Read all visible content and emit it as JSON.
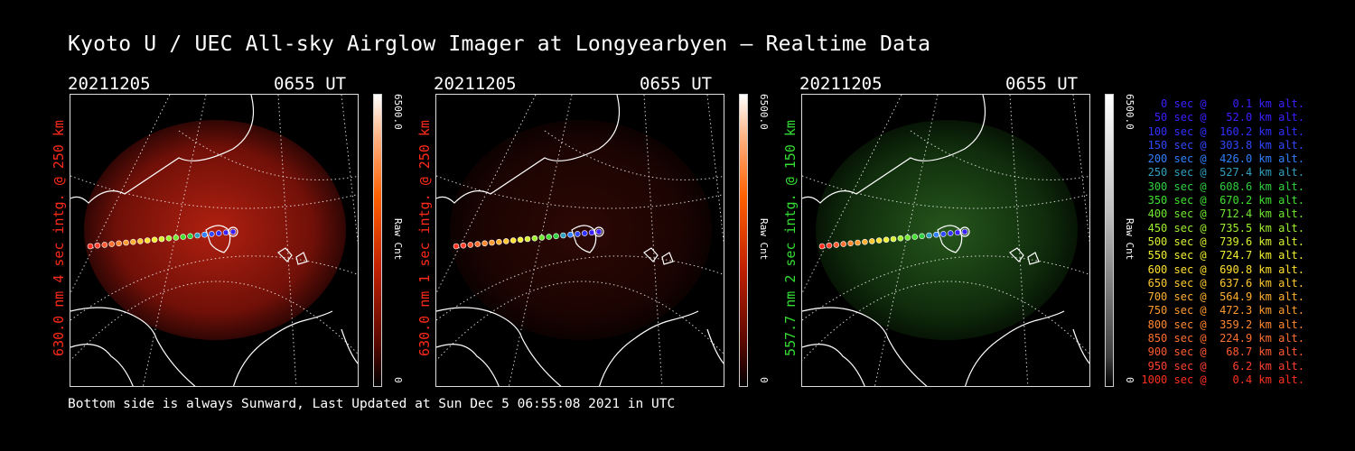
{
  "title": "Kyoto U / UEC All-sky Airglow Imager at Longyearbyen — Realtime Data",
  "panels": [
    {
      "date": "20211205",
      "time": "0655 UT",
      "ylabel": "630.0 nm 4 sec intg. @ 250 km",
      "label_color": "#ff2a1a",
      "cbar_max": "6500.0",
      "cbar_min": "0",
      "cbar_unit": "Raw Cnt",
      "tone": "red",
      "brightness": 1.0
    },
    {
      "date": "20211205",
      "time": "0655 UT",
      "ylabel": "630.0 nm 1 sec intg. @ 250 km",
      "label_color": "#ff2a1a",
      "cbar_max": "6500.0",
      "cbar_min": "0",
      "cbar_unit": "Raw Cnt",
      "tone": "red",
      "brightness": 0.25
    },
    {
      "date": "20211205",
      "time": "0655 UT",
      "ylabel": "557.7 nm 2 sec intg. @ 150 km",
      "label_color": "#33dd33",
      "cbar_max": "6500.0",
      "cbar_min": "0",
      "cbar_unit": "Raw Cnt",
      "tone": "green",
      "brightness": 0.6
    }
  ],
  "footer": "Bottom side is always Sunward, Last Updated at Sun Dec  5 06:55:08 2021 in UTC",
  "legend": [
    {
      "text": "   0 sec @    0.1 km alt.",
      "color": "#3a20ff"
    },
    {
      "text": "  50 sec @   52.0 km alt.",
      "color": "#3a20ff"
    },
    {
      "text": " 100 sec @  160.2 km alt.",
      "color": "#3030ff"
    },
    {
      "text": " 150 sec @  303.8 km alt.",
      "color": "#3048ff"
    },
    {
      "text": " 200 sec @  426.0 km alt.",
      "color": "#3080ff"
    },
    {
      "text": " 250 sec @  527.4 km alt.",
      "color": "#30a0c0"
    },
    {
      "text": " 300 sec @  608.6 km alt.",
      "color": "#30d040"
    },
    {
      "text": " 350 sec @  670.2 km alt.",
      "color": "#40e030"
    },
    {
      "text": " 400 sec @  712.4 km alt.",
      "color": "#70e830"
    },
    {
      "text": " 450 sec @  735.5 km alt.",
      "color": "#a0f030"
    },
    {
      "text": " 500 sec @  739.6 km alt.",
      "color": "#d8f030"
    },
    {
      "text": " 550 sec @  724.7 km alt.",
      "color": "#f0f030"
    },
    {
      "text": " 600 sec @  690.8 km alt.",
      "color": "#ffe030"
    },
    {
      "text": " 650 sec @  637.6 km alt.",
      "color": "#ffc830"
    },
    {
      "text": " 700 sec @  564.9 km alt.",
      "color": "#ffb030"
    },
    {
      "text": " 750 sec @  472.3 km alt.",
      "color": "#ff9a30"
    },
    {
      "text": " 800 sec @  359.2 km alt.",
      "color": "#ff8830"
    },
    {
      "text": " 850 sec @  224.9 km alt.",
      "color": "#ff7030"
    },
    {
      "text": " 900 sec @   68.7 km alt.",
      "color": "#ff5a30"
    },
    {
      "text": " 950 sec @    6.2 km alt.",
      "color": "#ff4030"
    },
    {
      "text": "1000 sec @    0.4 km alt.",
      "color": "#ff3020"
    }
  ]
}
